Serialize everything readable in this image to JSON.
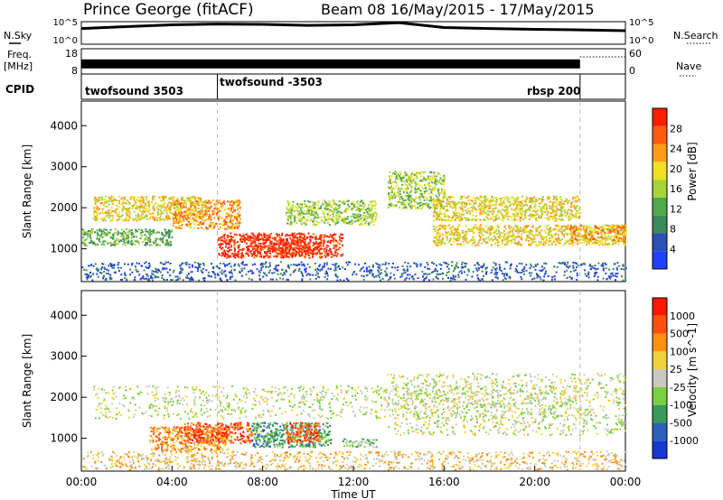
{
  "header": {
    "station": "Prince George (fitACF)",
    "beam_dates": "Beam 08  16/May/2015 - 17/May/2015"
  },
  "panel_labels": {
    "nsky": "N.Sky",
    "nsearch": "N.Search",
    "freq_line1": "Freq.",
    "freq_line2": "[MHz]",
    "nave": "Nave",
    "cpid": "CPID"
  },
  "cpid_segments": [
    "twofsound 3503",
    "twofsound -3503",
    "rbsp 200"
  ],
  "colors": {
    "power_scale": [
      "#1f3fff",
      "#2c4fb8",
      "#3a8a5a",
      "#4fa84a",
      "#a8d23a",
      "#f0e020",
      "#ff9a1a",
      "#ff5a10",
      "#ff1e00"
    ],
    "velocity_scale": [
      "#1838d0",
      "#2a60b8",
      "#3a9a5c",
      "#7ad040",
      "#c8c8c0",
      "#f0d040",
      "#ff9010",
      "#ff5010",
      "#ff1800"
    ]
  },
  "chart_data": [
    {
      "type": "line",
      "ylabel": "N.Sky",
      "y_ticks": [
        "10^5",
        "10^0"
      ],
      "right_ticks": [
        "10^5",
        "10^0"
      ],
      "ylim": [
        1,
        100000
      ],
      "log_scale": true,
      "x_hours": [
        0,
        2,
        4,
        6,
        8,
        10,
        12,
        14,
        16,
        18,
        20,
        22,
        24
      ],
      "values": [
        3000,
        8000,
        20000,
        30000,
        25000,
        15000,
        20000,
        60000,
        5000,
        3000,
        2000,
        1500,
        1000
      ]
    },
    {
      "type": "bar",
      "ylabel": "Freq. [MHz]",
      "y_ticks": [
        "18",
        "8"
      ],
      "right_ticks": [
        "60",
        "0"
      ],
      "ylim": [
        8,
        18
      ],
      "note_series": "Nave",
      "freq_block": {
        "x_start": 0,
        "x_end": 22,
        "mhz": 12
      },
      "nave_dotted": {
        "x_start": 22,
        "x_end": 24,
        "value": 50
      }
    },
    {
      "type": "heatmap",
      "title": "Power [dB]",
      "ylabel": "Slant Range [km]",
      "y_ticks": [
        "4000",
        "3000",
        "2000",
        "1000"
      ],
      "ylim": [
        200,
        4600
      ],
      "colorbar_ticks": [
        "28",
        "24",
        "20",
        "16",
        "12",
        "8",
        "4"
      ],
      "colorbar_range": [
        0,
        32
      ],
      "vertical_markers_hours": [
        6,
        22
      ],
      "blobs": [
        {
          "x0": 0.5,
          "x1": 5.5,
          "y0": 1700,
          "y1": 2300,
          "level": 5
        },
        {
          "x0": 4.0,
          "x1": 7.0,
          "y0": 1500,
          "y1": 2200,
          "level": 6
        },
        {
          "x0": 6.0,
          "x1": 11.5,
          "y0": 800,
          "y1": 1400,
          "level": 8
        },
        {
          "x0": 7.5,
          "x1": 10.5,
          "y0": 900,
          "y1": 1300,
          "level": 8
        },
        {
          "x0": 0.0,
          "x1": 4.0,
          "y0": 1100,
          "y1": 1500,
          "level": 3
        },
        {
          "x0": 9.0,
          "x1": 13.0,
          "y0": 1600,
          "y1": 2200,
          "level": 4
        },
        {
          "x0": 13.5,
          "x1": 16.0,
          "y0": 2000,
          "y1": 2900,
          "level": 4
        },
        {
          "x0": 15.5,
          "x1": 22.0,
          "y0": 1700,
          "y1": 2300,
          "level": 5
        },
        {
          "x0": 15.5,
          "x1": 24.0,
          "y0": 1100,
          "y1": 1600,
          "level": 5
        },
        {
          "x0": 21.5,
          "x1": 24.0,
          "y0": 1200,
          "y1": 1600,
          "level": 6
        },
        {
          "x0": 0.0,
          "x1": 24.0,
          "y0": 250,
          "y1": 700,
          "level": 1
        }
      ]
    },
    {
      "type": "heatmap",
      "title": "Velocity [m s^-1]",
      "ylabel": "Slant Range [km]",
      "xlabel": "Time UT",
      "x_ticks": [
        "00:00",
        "04:00",
        "08:00",
        "12:00",
        "16:00",
        "20:00",
        "00:00"
      ],
      "y_ticks": [
        "4000",
        "3000",
        "2000",
        "1000"
      ],
      "ylim": [
        200,
        4600
      ],
      "colorbar_ticks": [
        "1000",
        "500",
        "100",
        "25",
        "-25",
        "-100",
        "-500",
        "-1000"
      ],
      "vertical_markers_hours": [
        6,
        22
      ],
      "blobs": [
        {
          "x0": 0.5,
          "x1": 22.0,
          "y0": 1500,
          "y1": 2300,
          "level": 4
        },
        {
          "x0": 3.0,
          "x1": 6.5,
          "y0": 700,
          "y1": 1300,
          "level": 6
        },
        {
          "x0": 4.5,
          "x1": 7.5,
          "y0": 900,
          "y1": 1400,
          "level": 7
        },
        {
          "x0": 7.5,
          "x1": 11.0,
          "y0": 800,
          "y1": 1400,
          "level": 2
        },
        {
          "x0": 9.0,
          "x1": 10.5,
          "y0": 900,
          "y1": 1400,
          "level": 7
        },
        {
          "x0": 11.5,
          "x1": 13.0,
          "y0": 800,
          "y1": 1000,
          "level": 3
        },
        {
          "x0": 13.5,
          "x1": 24.0,
          "y0": 1100,
          "y1": 2600,
          "level": 4
        },
        {
          "x0": 0.0,
          "x1": 24.0,
          "y0": 250,
          "y1": 700,
          "level": 5
        }
      ]
    }
  ]
}
